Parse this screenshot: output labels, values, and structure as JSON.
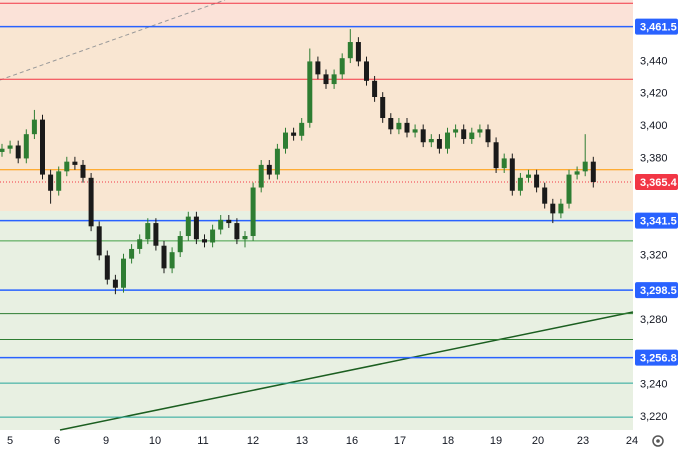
{
  "chart_data": {
    "type": "candlestick",
    "x_labels": [
      "5",
      "6",
      "9",
      "10",
      "11",
      "12",
      "13",
      "16",
      "17",
      "18",
      "19",
      "20",
      "23",
      "24"
    ],
    "series": [
      {
        "up_color": "#2e7d32",
        "down_color": "#1a1a1a",
        "open": [
          3384,
          3386,
          3388,
          3380,
          3395,
          3404,
          3370,
          3360,
          3372,
          3378,
          3376,
          3368,
          3338,
          3320,
          3305,
          3300,
          3318,
          3324,
          3330,
          3340,
          3326,
          3312,
          3322,
          3332,
          3344,
          3330,
          3328,
          3336,
          3342,
          3340,
          3330,
          3332,
          3362,
          3376,
          3370,
          3386,
          3396,
          3394,
          3402,
          3440,
          3432,
          3426,
          3432,
          3442,
          3452,
          3440,
          3428,
          3418,
          3405,
          3398,
          3402,
          3396,
          3398,
          3390,
          3392,
          3386,
          3396,
          3398,
          3392,
          3396,
          3398,
          3390,
          3374,
          3380,
          3360,
          3368,
          3370,
          3362,
          3352,
          3346,
          3352,
          3370,
          3372,
          3378
        ],
        "high": [
          3389,
          3391,
          3391,
          3398,
          3410,
          3407,
          3373,
          3375,
          3381,
          3381,
          3379,
          3371,
          3341,
          3323,
          3308,
          3321,
          3327,
          3333,
          3343,
          3343,
          3329,
          3325,
          3335,
          3347,
          3347,
          3333,
          3339,
          3345,
          3345,
          3343,
          3335,
          3365,
          3379,
          3379,
          3389,
          3399,
          3399,
          3405,
          3448,
          3443,
          3435,
          3435,
          3445,
          3460,
          3455,
          3443,
          3431,
          3421,
          3408,
          3405,
          3405,
          3401,
          3401,
          3395,
          3395,
          3399,
          3401,
          3401,
          3399,
          3401,
          3401,
          3393,
          3383,
          3383,
          3371,
          3373,
          3373,
          3365,
          3355,
          3355,
          3373,
          3375,
          3395,
          3381
        ],
        "low": [
          3381,
          3383,
          3377,
          3377,
          3392,
          3367,
          3352,
          3357,
          3369,
          3373,
          3365,
          3335,
          3317,
          3302,
          3296,
          3297,
          3315,
          3321,
          3327,
          3323,
          3309,
          3309,
          3319,
          3329,
          3327,
          3325,
          3325,
          3333,
          3337,
          3327,
          3325,
          3329,
          3359,
          3367,
          3367,
          3383,
          3391,
          3391,
          3399,
          3429,
          3423,
          3423,
          3429,
          3439,
          3437,
          3425,
          3415,
          3402,
          3395,
          3395,
          3393,
          3393,
          3387,
          3387,
          3383,
          3383,
          3393,
          3389,
          3389,
          3393,
          3387,
          3371,
          3371,
          3357,
          3357,
          3365,
          3359,
          3349,
          3340,
          3343,
          3349,
          3367,
          3369,
          3362
        ],
        "close": [
          3386,
          3388,
          3380,
          3395,
          3404,
          3370,
          3360,
          3372,
          3378,
          3376,
          3368,
          3338,
          3320,
          3305,
          3300,
          3318,
          3324,
          3330,
          3340,
          3326,
          3312,
          3322,
          3332,
          3344,
          3330,
          3328,
          3336,
          3342,
          3340,
          3330,
          3332,
          3362,
          3376,
          3370,
          3386,
          3396,
          3394,
          3402,
          3440,
          3432,
          3426,
          3432,
          3442,
          3452,
          3440,
          3428,
          3418,
          3405,
          3398,
          3402,
          3396,
          3398,
          3390,
          3392,
          3386,
          3396,
          3398,
          3392,
          3396,
          3398,
          3390,
          3374,
          3380,
          3360,
          3368,
          3370,
          3362,
          3352,
          3346,
          3352,
          3370,
          3372,
          3378,
          3365.4
        ]
      }
    ],
    "ylim": [
      3212,
      3478
    ],
    "yticks": [
      {
        "value": 3220,
        "label": "3,220"
      },
      {
        "value": 3240,
        "label": "3,240"
      },
      {
        "value": 3280,
        "label": "3,280"
      },
      {
        "value": 3320,
        "label": "3,320"
      },
      {
        "value": 3380,
        "label": "3,380"
      },
      {
        "value": 3400,
        "label": "3,400"
      },
      {
        "value": 3420,
        "label": "3,420"
      },
      {
        "value": 3440,
        "label": "3,440"
      }
    ],
    "levels": [
      {
        "value": 3461.5,
        "label": "3,461.5",
        "color": "#2962ff"
      },
      {
        "value": 3341.5,
        "label": "3,341.5",
        "color": "#2962ff"
      },
      {
        "value": 3298.5,
        "label": "3,298.5",
        "color": "#2962ff"
      },
      {
        "value": 3256.8,
        "label": "3,256.8",
        "color": "#2962ff"
      },
      {
        "value": 3365.4,
        "label": "3,365.4",
        "color": "#f23645",
        "dotted": true
      }
    ],
    "lines": [
      {
        "value": 3476,
        "color": "#f23645"
      },
      {
        "value": 3429,
        "color": "#f23645"
      },
      {
        "value": 3373,
        "color": "#ff9800"
      },
      {
        "value": 3329,
        "color": "#43a047"
      },
      {
        "value": 3284,
        "color": "#2e7d32"
      },
      {
        "value": 3268,
        "color": "#2e7d32"
      },
      {
        "value": 3241,
        "color": "#26a69a"
      },
      {
        "value": 3220,
        "color": "#26a69a"
      }
    ]
  }
}
